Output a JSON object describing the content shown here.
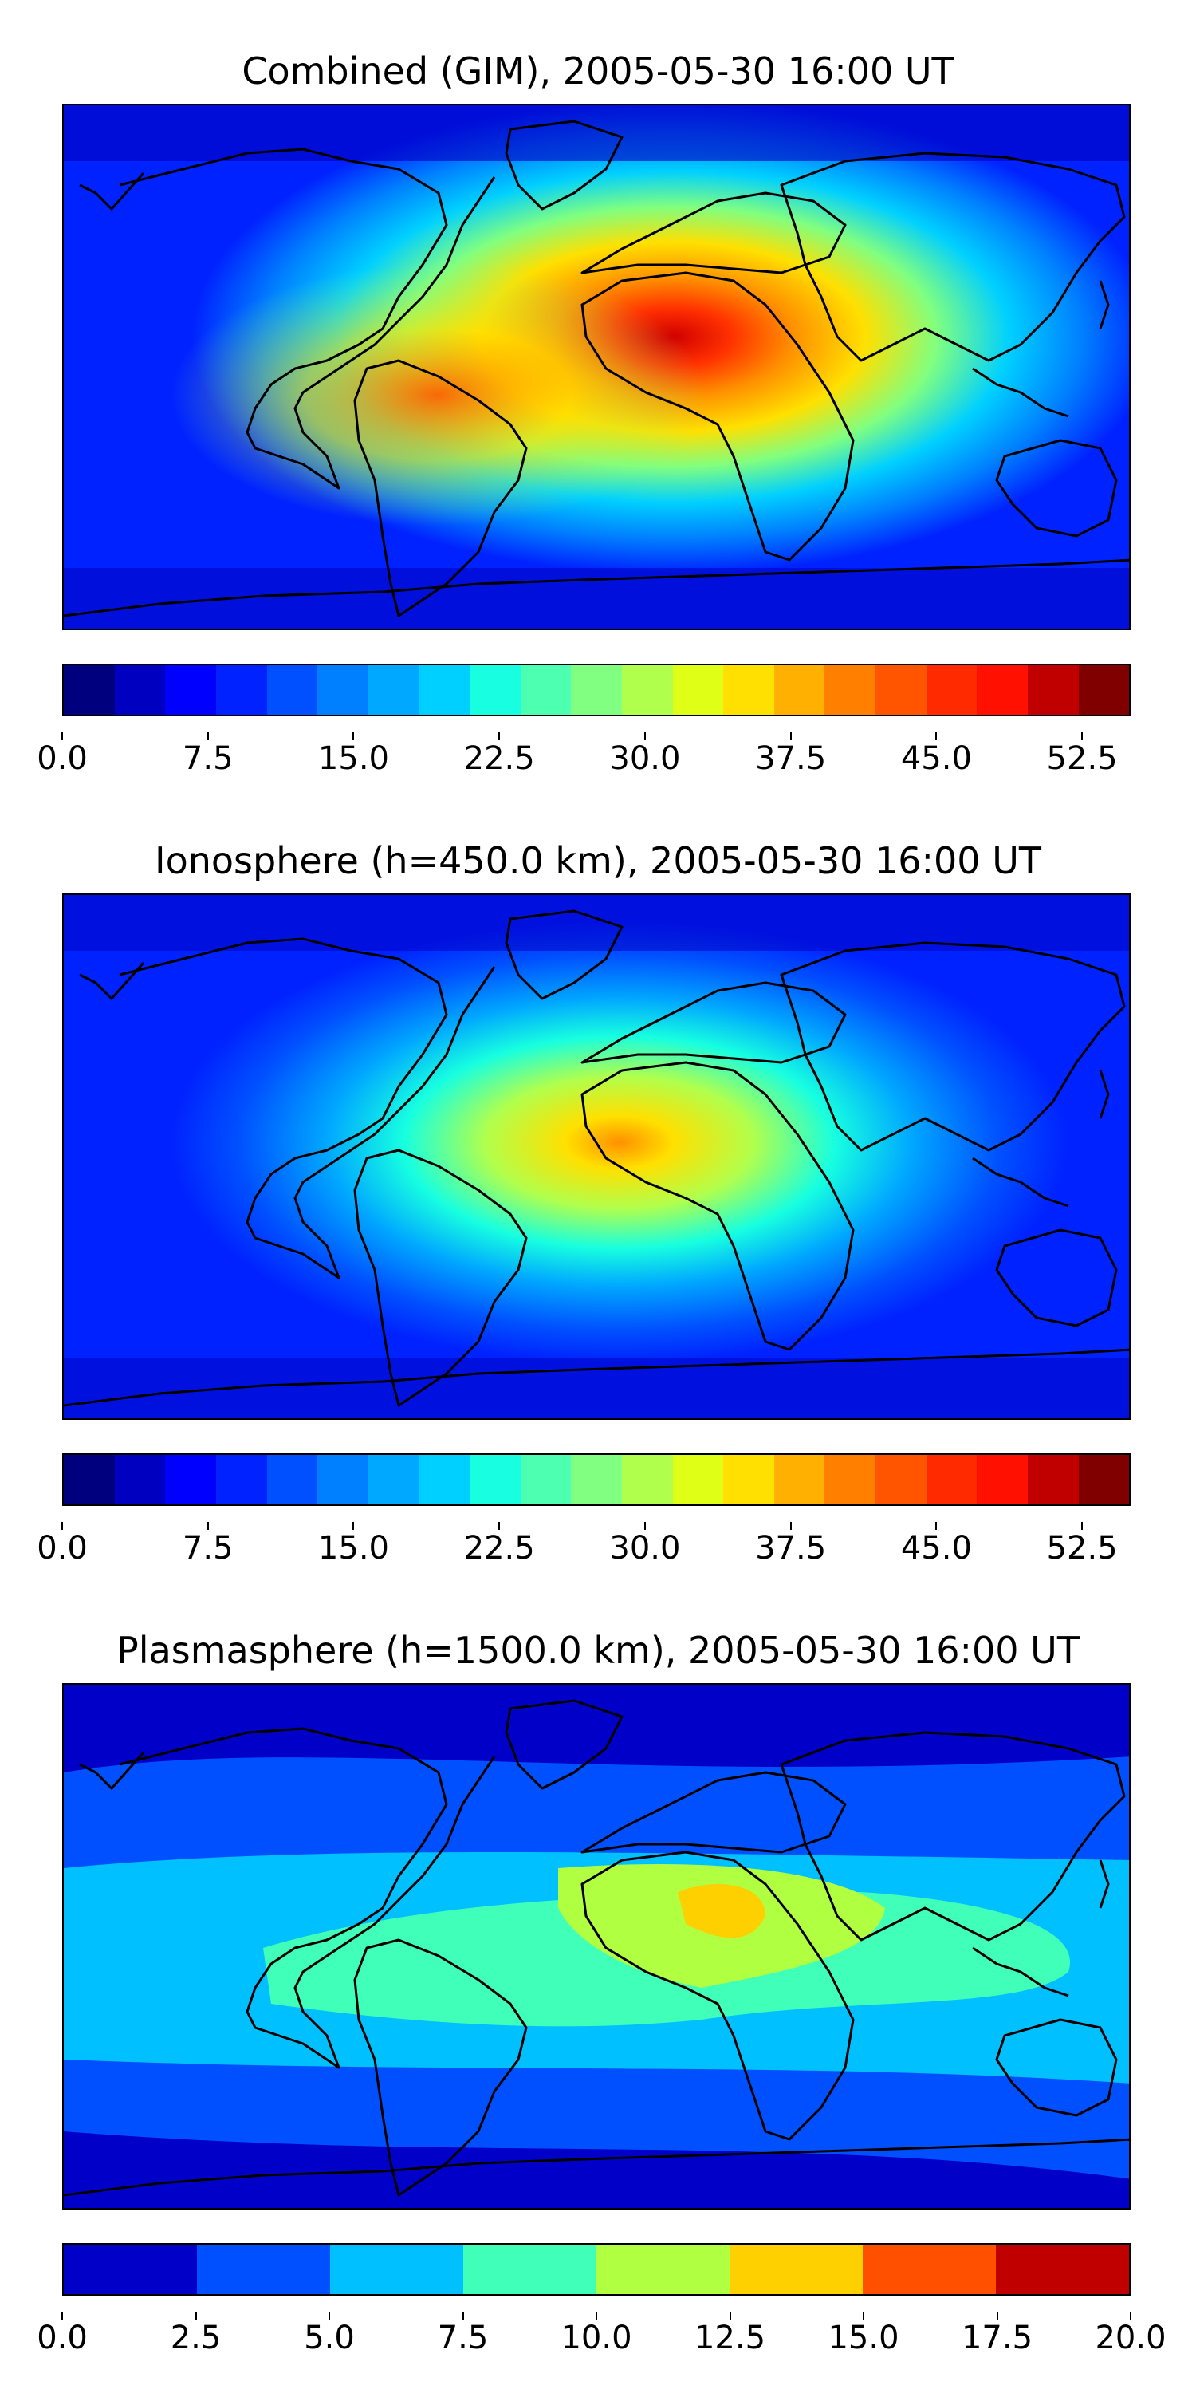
{
  "panels": [
    {
      "title": "Combined (GIM), 2005-05-30 16:00 UT",
      "colorbar": {
        "colors": [
          "#00007f",
          "#0000c0",
          "#0000ff",
          "#0022ff",
          "#0050ff",
          "#0080ff",
          "#00a8ff",
          "#00d0ff",
          "#17ffe0",
          "#4dffb0",
          "#80ff80",
          "#b0ff4d",
          "#e0ff17",
          "#ffe000",
          "#ffb000",
          "#ff8000",
          "#ff5500",
          "#ff2a00",
          "#ff1000",
          "#c00000",
          "#800000"
        ],
        "ticks": [
          "0.0",
          "7.5",
          "15.0",
          "22.5",
          "30.0",
          "37.5",
          "45.0",
          "52.5"
        ],
        "range": [
          0,
          55
        ]
      }
    },
    {
      "title": "Ionosphere  (h=450.0 km), 2005-05-30 16:00 UT",
      "colorbar": {
        "colors": [
          "#00007f",
          "#0000c0",
          "#0000ff",
          "#0022ff",
          "#0050ff",
          "#0080ff",
          "#00a8ff",
          "#00d0ff",
          "#17ffe0",
          "#4dffb0",
          "#80ff80",
          "#b0ff4d",
          "#e0ff17",
          "#ffe000",
          "#ffb000",
          "#ff8000",
          "#ff5500",
          "#ff2a00",
          "#ff1000",
          "#c00000",
          "#800000"
        ],
        "ticks": [
          "0.0",
          "7.5",
          "15.0",
          "22.5",
          "30.0",
          "37.5",
          "45.0",
          "52.5"
        ],
        "range": [
          0,
          55
        ]
      }
    },
    {
      "title": "Plasmasphere (h=1500.0 km), 2005-05-30 16:00 UT",
      "colorbar": {
        "colors": [
          "#0000c8",
          "#0050ff",
          "#00c0ff",
          "#40ffb8",
          "#b0ff40",
          "#ffd000",
          "#ff5000",
          "#c00000"
        ],
        "ticks": [
          "0.0",
          "2.5",
          "5.0",
          "7.5",
          "10.0",
          "12.5",
          "15.0",
          "17.5",
          "20.0"
        ],
        "range": [
          0,
          20
        ]
      }
    }
  ]
}
